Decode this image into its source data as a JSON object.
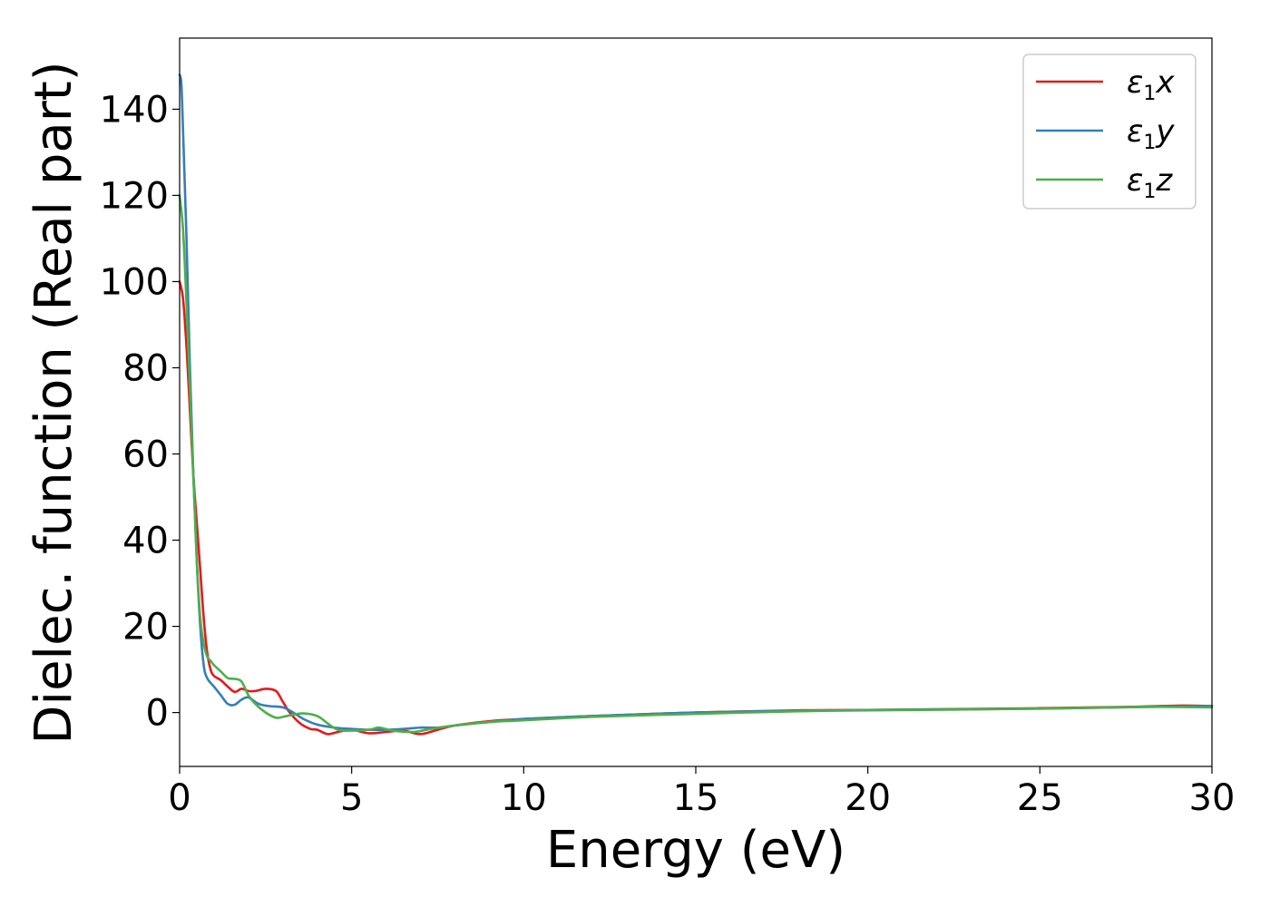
{
  "chart_data": {
    "type": "line",
    "title": "",
    "xlabel": "Energy (eV)",
    "ylabel": "Dielec. function (Real part)",
    "xlim": [
      0,
      30
    ],
    "ylim": [
      -12.5,
      156.5
    ],
    "xticks": [
      0,
      5,
      10,
      15,
      20,
      25,
      30
    ],
    "yticks": [
      0,
      20,
      40,
      60,
      80,
      100,
      120,
      140
    ],
    "grid": false,
    "legend": "top-right",
    "series": [
      {
        "name": "ε1x",
        "label_base": "ε",
        "label_sub": "1",
        "label_suffix": "x",
        "color": "#e41a1c",
        "x": [
          0,
          0.1,
          0.2,
          0.3,
          0.4,
          0.5,
          0.6,
          0.7,
          0.8,
          0.9,
          1.0,
          1.2,
          1.4,
          1.6,
          1.8,
          2.0,
          2.2,
          2.5,
          2.8,
          3.0,
          3.2,
          3.5,
          3.8,
          4.0,
          4.3,
          4.6,
          5.0,
          5.5,
          6.0,
          6.5,
          7.0,
          7.5,
          8.0,
          9.0,
          10.0,
          12.0,
          15.0,
          18.0,
          20.0,
          25.0,
          27.5,
          29.0,
          30.0
        ],
        "values": [
          100,
          96,
          85,
          70,
          55,
          44,
          33,
          22,
          14,
          10,
          8.5,
          7.5,
          6,
          4.8,
          5.5,
          5,
          5,
          5.5,
          5,
          2.5,
          0,
          -2.5,
          -3.8,
          -4,
          -5,
          -4.5,
          -4,
          -4.8,
          -4.5,
          -4.2,
          -5,
          -4,
          -3,
          -2,
          -1.5,
          -0.8,
          0,
          0.5,
          0.6,
          1,
          1.3,
          1.6,
          1.5
        ]
      },
      {
        "name": "ε1y",
        "label_base": "ε",
        "label_sub": "1",
        "label_suffix": "y",
        "color": "#377eb8",
        "x": [
          0,
          0.05,
          0.1,
          0.2,
          0.3,
          0.4,
          0.5,
          0.6,
          0.7,
          0.8,
          1.0,
          1.2,
          1.4,
          1.6,
          1.8,
          2.0,
          2.3,
          2.6,
          3.0,
          3.3,
          3.6,
          4.0,
          4.5,
          5.0,
          5.5,
          6.0,
          6.5,
          7.0,
          7.5,
          8.0,
          9.0,
          10.0,
          12.0,
          15.0,
          18.0,
          20.0,
          25.0,
          28.0,
          30.0
        ],
        "values": [
          148,
          146,
          135,
          110,
          80,
          55,
          35,
          20,
          11,
          8,
          6,
          4,
          2,
          1.8,
          3,
          3.5,
          2,
          1.5,
          1.2,
          0,
          -1.5,
          -2.8,
          -3.5,
          -3.8,
          -4,
          -4,
          -3.8,
          -3.5,
          -3.5,
          -3,
          -2.2,
          -1.5,
          -0.8,
          0,
          0.4,
          0.6,
          0.9,
          1.3,
          1.5
        ]
      },
      {
        "name": "ε1z",
        "label_base": "ε",
        "label_sub": "1",
        "label_suffix": "z",
        "color": "#4daf4a",
        "x": [
          0,
          0.1,
          0.2,
          0.3,
          0.4,
          0.5,
          0.6,
          0.7,
          0.8,
          0.9,
          1.0,
          1.2,
          1.4,
          1.6,
          1.8,
          2.0,
          2.2,
          2.5,
          2.8,
          3.0,
          3.3,
          3.6,
          4.0,
          4.3,
          4.6,
          5.0,
          5.5,
          5.8,
          6.2,
          6.8,
          7.3,
          8.0,
          9.0,
          10.0,
          12.0,
          15.0,
          18.0,
          20.0,
          25.0,
          28.0,
          30.0
        ],
        "values": [
          120,
          112,
          95,
          75,
          55,
          35,
          22,
          16,
          13,
          12,
          11,
          9.5,
          8,
          7.8,
          7.2,
          4,
          2,
          0,
          -1.2,
          -1,
          -0.5,
          -0.2,
          -0.8,
          -2.5,
          -4,
          -4.2,
          -4,
          -3.5,
          -4.2,
          -4.5,
          -3.8,
          -3,
          -2.2,
          -1.8,
          -1,
          -0.3,
          0.3,
          0.5,
          0.9,
          1.3,
          1.2
        ]
      }
    ]
  }
}
